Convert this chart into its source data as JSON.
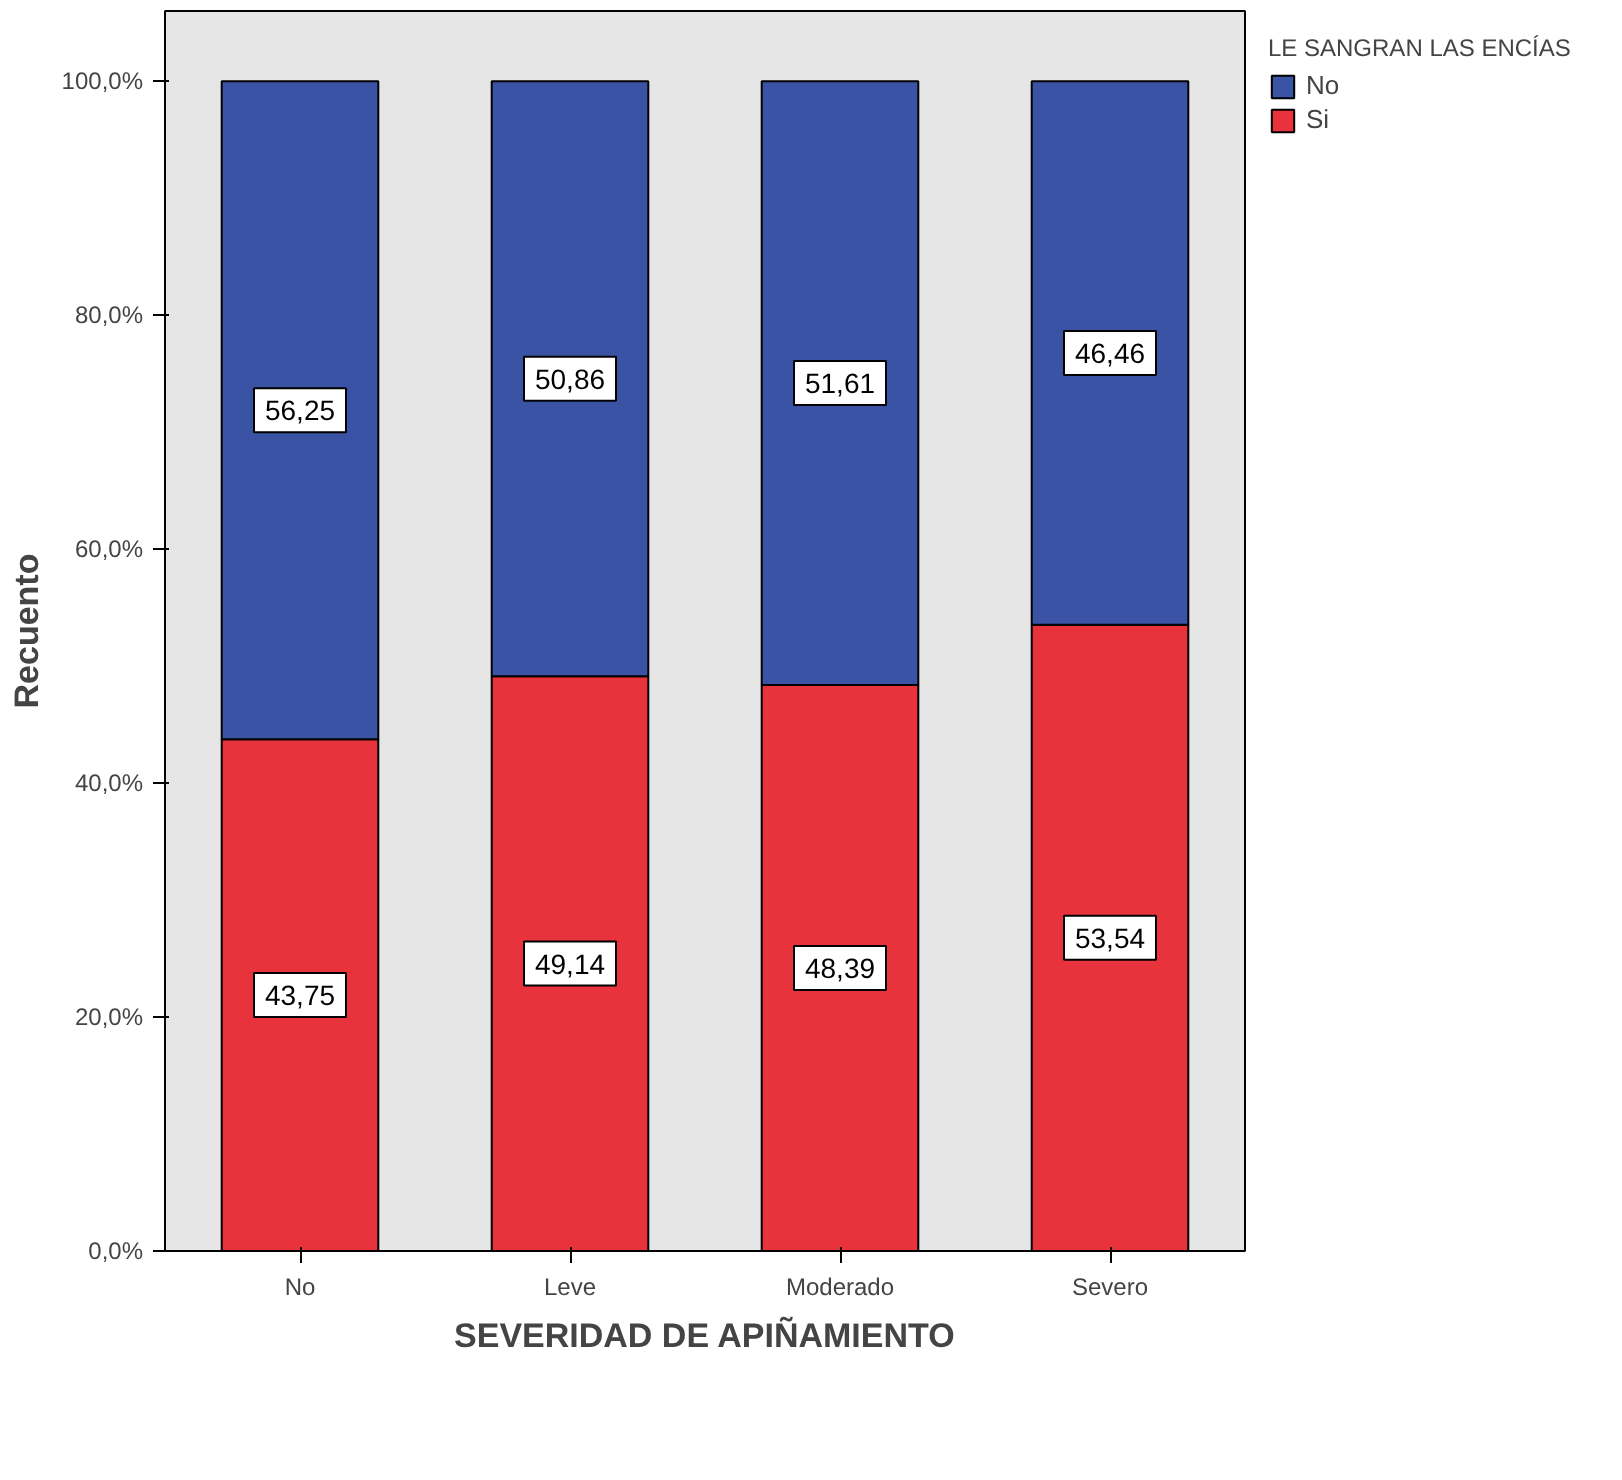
{
  "chart_data": {
    "type": "bar",
    "stacked": true,
    "xlabel": "SEVERIDAD DE APIÑAMIENTO",
    "ylabel": "Recuento",
    "legend_title": "LE SANGRAN LAS ENCÍAS",
    "legend": "top right",
    "grid": false,
    "categories": [
      "No",
      "Leve",
      "Moderado",
      "Severo"
    ],
    "ylim": [
      0,
      106
    ],
    "yticks": [
      {
        "value": 0,
        "label": "0,0%"
      },
      {
        "value": 20,
        "label": "20,0%"
      },
      {
        "value": 40,
        "label": "40,0%"
      },
      {
        "value": 60,
        "label": "60,0%"
      },
      {
        "value": 80,
        "label": "80,0%"
      },
      {
        "value": 100,
        "label": "100,0%"
      }
    ],
    "series": [
      {
        "name": "Si",
        "color": "#e8323c",
        "values": [
          43.75,
          49.14,
          48.39,
          53.54
        ],
        "value_labels": [
          "43,75",
          "49,14",
          "48,39",
          "53,54"
        ]
      },
      {
        "name": "No",
        "color": "#3a53a4",
        "values": [
          56.25,
          50.86,
          51.61,
          46.46
        ],
        "value_labels": [
          "56,25",
          "50,86",
          "51,61",
          "46,46"
        ]
      }
    ]
  }
}
